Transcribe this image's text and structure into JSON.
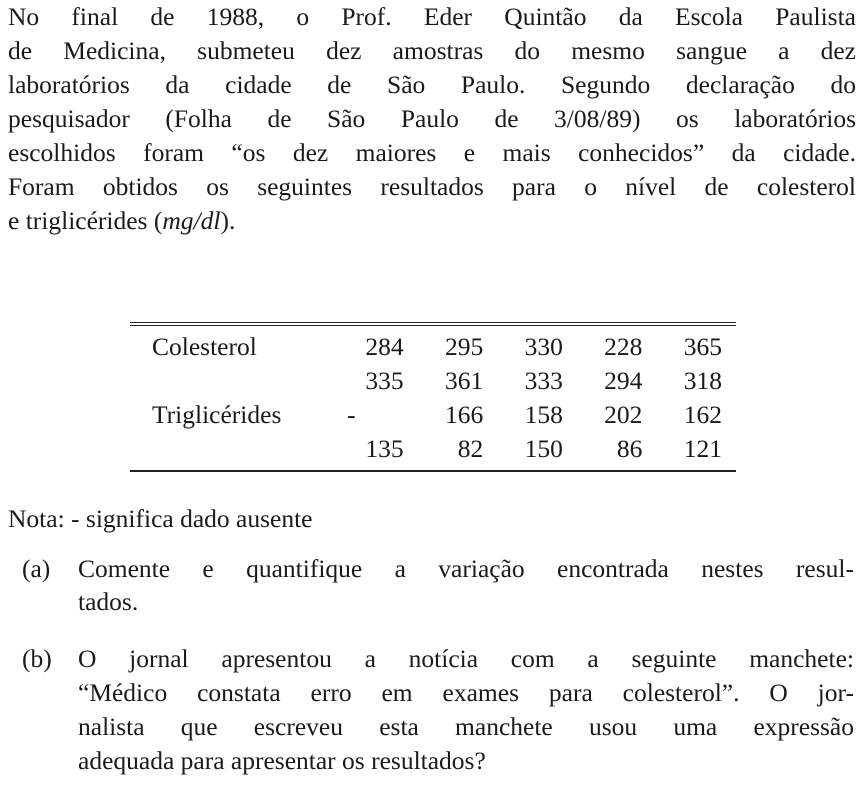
{
  "paragraph": [
    "No final de 1988, o Prof.  Eder Quintão da Escola Paulista",
    "de Medicina, submeteu dez amostras do mesmo sangue a dez",
    "laboratórios da cidade de São Paulo.  Segundo declaração do",
    "pesquisador (Folha de São Paulo de 3/08/89) os laboratórios",
    "escolhidos foram “os dez maiores e mais conhecidos” da cidade.",
    "Foram obtidos os seguintes resultados para o nível de colesterol",
    "e triglicérides (mg/dl)."
  ],
  "table": {
    "rows": [
      {
        "label": "Colesterol",
        "values": [
          "284",
          "295",
          "330",
          "228",
          "365"
        ]
      },
      {
        "label": "",
        "values": [
          "335",
          "361",
          "333",
          "294",
          "318"
        ]
      },
      {
        "label": "Triglicérides",
        "values": [
          "-",
          "166",
          "158",
          "202",
          "162"
        ]
      },
      {
        "label": "",
        "values": [
          "135",
          "82",
          "150",
          "86",
          "121"
        ]
      }
    ]
  },
  "note": "Nota: - significa dado ausente",
  "items": [
    {
      "mark": "(a)",
      "lines": [
        "Comente e quantifique a variação encontrada nestes resul-",
        "tados."
      ]
    },
    {
      "mark": "(b)",
      "lines": [
        "O jornal apresentou a notícia com a seguinte manchete:",
        "“Médico constata erro em exames para colesterol”.  O jor-",
        "nalista que escreveu esta manchete usou uma expressão",
        "adequada para apresentar os resultados?"
      ]
    }
  ]
}
